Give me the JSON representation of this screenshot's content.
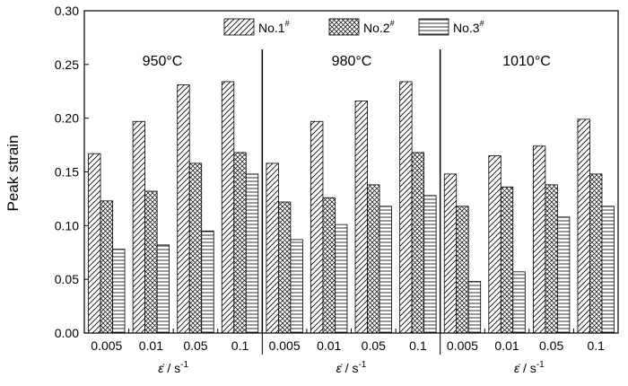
{
  "chart_data": {
    "type": "bar",
    "ylabel": "Peak strain",
    "ylim": [
      0,
      0.3
    ],
    "yticks": [
      "0.00",
      "0.05",
      "0.10",
      "0.15",
      "0.20",
      "0.25",
      "0.30"
    ],
    "xlabel": "ε̇ / s",
    "xlabel_exp": "-1",
    "legend_position": "top",
    "series": [
      {
        "name": "No.1",
        "sup": "#",
        "pattern": "diagonal"
      },
      {
        "name": "No.2",
        "sup": "#",
        "pattern": "crosshatch"
      },
      {
        "name": "No.3",
        "sup": "#",
        "pattern": "horizontal"
      }
    ],
    "groups": [
      {
        "label": "950°C",
        "categories": [
          "0.005",
          "0.01",
          "0.05",
          "0.1"
        ],
        "values": [
          [
            0.167,
            0.123,
            0.078
          ],
          [
            0.197,
            0.132,
            0.082
          ],
          [
            0.231,
            0.158,
            0.095
          ],
          [
            0.234,
            0.168,
            0.148
          ]
        ]
      },
      {
        "label": "980°C",
        "categories": [
          "0.005",
          "0.01",
          "0.05",
          "0.1"
        ],
        "values": [
          [
            0.158,
            0.122,
            0.087
          ],
          [
            0.197,
            0.126,
            0.101
          ],
          [
            0.216,
            0.138,
            0.118
          ],
          [
            0.234,
            0.168,
            0.128
          ]
        ]
      },
      {
        "label": "1010°C",
        "categories": [
          "0.005",
          "0.01",
          "0.05",
          "0.1"
        ],
        "values": [
          [
            0.148,
            0.118,
            0.048
          ],
          [
            0.165,
            0.136,
            0.057
          ],
          [
            0.174,
            0.138,
            0.108
          ],
          [
            0.199,
            0.148,
            0.118
          ]
        ]
      }
    ]
  }
}
